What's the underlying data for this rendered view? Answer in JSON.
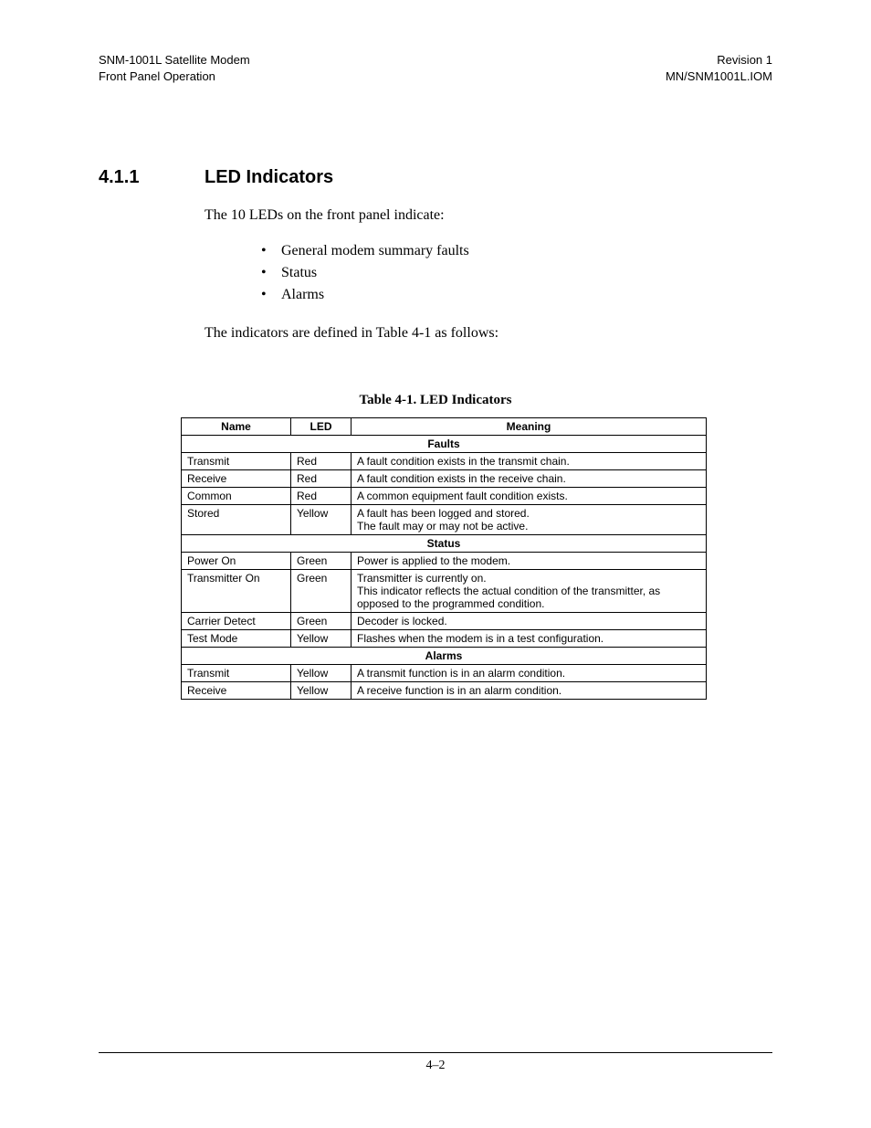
{
  "header": {
    "left_line1": "SNM-1001L Satellite Modem",
    "left_line2": "Front Panel Operation",
    "right_line1": "Revision 1",
    "right_line2": "MN/SNM1001L.IOM"
  },
  "section": {
    "number": "4.1.1",
    "title": "LED Indicators"
  },
  "body": {
    "intro": "The 10 LEDs on the front panel indicate:",
    "bullets": [
      "General modem summary faults",
      "Status",
      "Alarms"
    ],
    "after_bullets": "The indicators are defined in Table 4-1 as follows:"
  },
  "table": {
    "caption": "Table 4-1.  LED Indicators",
    "headers": {
      "name": "Name",
      "led": "LED",
      "meaning": "Meaning"
    },
    "sections": [
      {
        "title": "Faults",
        "rows": [
          {
            "name": "Transmit",
            "led": "Red",
            "meaning": "A fault condition exists in the transmit chain."
          },
          {
            "name": "Receive",
            "led": "Red",
            "meaning": "A fault condition exists in the receive chain."
          },
          {
            "name": "Common",
            "led": "Red",
            "meaning": "A common equipment fault condition exists."
          },
          {
            "name": "Stored",
            "led": "Yellow",
            "meaning": "A fault has been logged and stored.\nThe fault may or may not be active."
          }
        ]
      },
      {
        "title": "Status",
        "rows": [
          {
            "name": "Power On",
            "led": "Green",
            "meaning": "Power is applied to the modem."
          },
          {
            "name": "Transmitter On",
            "led": "Green",
            "meaning": "Transmitter is currently on.\nThis indicator reflects the actual condition of the transmitter, as opposed to the programmed condition."
          },
          {
            "name": "Carrier Detect",
            "led": "Green",
            "meaning": "Decoder is locked."
          },
          {
            "name": "Test Mode",
            "led": "Yellow",
            "meaning": "Flashes when the modem is in a test configuration."
          }
        ]
      },
      {
        "title": "Alarms",
        "rows": [
          {
            "name": "Transmit",
            "led": "Yellow",
            "meaning": "A transmit function is in an alarm condition."
          },
          {
            "name": "Receive",
            "led": "Yellow",
            "meaning": "A receive function is in an alarm condition."
          }
        ]
      }
    ]
  },
  "footer": {
    "page_number": "4–2"
  }
}
